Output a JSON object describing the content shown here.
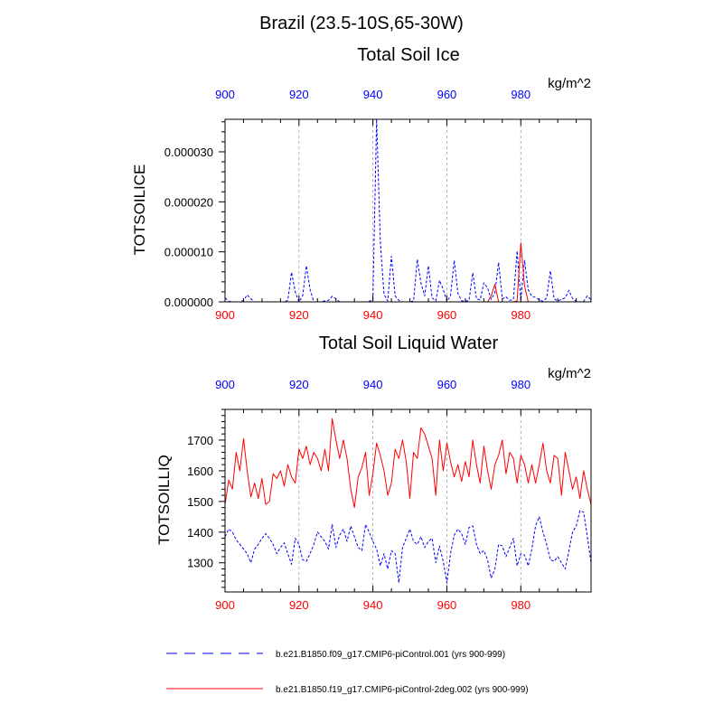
{
  "colors": {
    "blue": "#0000ff",
    "red": "#ff0000",
    "grid": "#a0a0a0",
    "frame": "#000000"
  },
  "figure": {
    "title": "Brazil (23.5-10S,65-30W)"
  },
  "legend": {
    "items": [
      {
        "label": "b.e21.B1850.f09_g17.CMIP6-piControl.001 (yrs 900-999)",
        "color": "#0000ff",
        "style": "dashed"
      },
      {
        "label": "b.e21.B1850.f19_g17.CMIP6-piControl-2deg.002 (yrs 900-999)",
        "color": "#ff0000",
        "style": "solid"
      }
    ]
  },
  "chart_data": [
    {
      "type": "line",
      "title": "Total Soil Ice",
      "units": "kg/m^2",
      "ylabel": "TOTSOILICE",
      "xlabel": "",
      "xlim": [
        900,
        999
      ],
      "ylim": [
        0,
        3.65e-05
      ],
      "x_ticks": [
        900,
        920,
        940,
        960,
        980
      ],
      "y_ticks": [
        0,
        1e-05,
        2e-05,
        3e-05
      ],
      "y_tick_labels": [
        "0.000000",
        "0.000010",
        "0.000020",
        "0.000030"
      ],
      "top_tick_color": "#0000ff",
      "bottom_tick_color": "#ff0000",
      "grid_x": true,
      "x": [
        900,
        901,
        902,
        903,
        904,
        905,
        906,
        907,
        908,
        909,
        910,
        911,
        912,
        913,
        914,
        915,
        916,
        917,
        918,
        919,
        920,
        921,
        922,
        923,
        924,
        925,
        926,
        927,
        928,
        929,
        930,
        931,
        932,
        933,
        934,
        935,
        936,
        937,
        938,
        939,
        940,
        941,
        942,
        943,
        944,
        945,
        946,
        947,
        948,
        949,
        950,
        951,
        952,
        953,
        954,
        955,
        956,
        957,
        958,
        959,
        960,
        961,
        962,
        963,
        964,
        965,
        966,
        967,
        968,
        969,
        970,
        971,
        972,
        973,
        974,
        975,
        976,
        977,
        978,
        979,
        980,
        981,
        982,
        983,
        984,
        985,
        986,
        987,
        988,
        989,
        990,
        991,
        992,
        993,
        994,
        995,
        996,
        997,
        998,
        999
      ],
      "series": [
        {
          "name": "b.e21.B1850.f09_g17.CMIP6-piControl.001 (yrs 900-999)",
          "color": "#0000ff",
          "style": "dashed",
          "values": [
            8e-07,
            1e-07,
            0,
            0,
            0,
            3e-07,
            1.4e-06,
            6e-07,
            0,
            0,
            0,
            0,
            0,
            0,
            0,
            0,
            0,
            3e-07,
            5.9e-06,
            2e-06,
            0,
            1.2e-06,
            7.2e-06,
            2.5e-06,
            0,
            0,
            0,
            2e-07,
            3e-07,
            1.1e-06,
            6e-07,
            0,
            0,
            0,
            0,
            0,
            0,
            0,
            0,
            1e-07,
            4e-07,
            3.65e-05,
            1.21e-05,
            1.5e-06,
            2e-07,
            9.1e-06,
            1.2e-06,
            3e-07,
            0,
            0,
            0,
            2e-07,
            8.5e-06,
            3.8e-06,
            1.2e-06,
            7.2e-06,
            8e-07,
            2e-07,
            4.3e-06,
            2.5e-06,
            1e-07,
            1.2e-06,
            8.3e-06,
            1.7e-06,
            2e-07,
            1e-07,
            3e-07,
            5.8e-06,
            6e-07,
            4e-07,
            3.8e-06,
            2.8e-06,
            5e-07,
            1.8e-06,
            7.9e-06,
            6e-07,
            1e-06,
            3e-07,
            5e-07,
            1.02e-05,
            3e-07,
            8.3e-06,
            2.4e-06,
            1.1e-06,
            9e-07,
            4e-07,
            1e-07,
            8e-07,
            6.2e-06,
            6e-07,
            2e-07,
            5e-07,
            8e-07,
            2.3e-06,
            7e-07,
            1e-07,
            0,
            1e-07,
            1.2e-06,
            4e-07
          ]
        },
        {
          "name": "b.e21.B1850.f19_g17.CMIP6-piControl-2deg.002 (yrs 900-999)",
          "color": "#ff0000",
          "style": "solid",
          "values": [
            0,
            0,
            0,
            0,
            0,
            0,
            0,
            0,
            0,
            0,
            0,
            0,
            0,
            0,
            0,
            0,
            0,
            0,
            0,
            0,
            0,
            0,
            0,
            0,
            0,
            0,
            0,
            0,
            0,
            0,
            0,
            0,
            0,
            0,
            0,
            0,
            0,
            0,
            0,
            0,
            0,
            0,
            0,
            0,
            0,
            0,
            0,
            0,
            0,
            0,
            0,
            0,
            0,
            0,
            0,
            0,
            0,
            0,
            0,
            0,
            0,
            0,
            0,
            0,
            0,
            0,
            0,
            0,
            0,
            0,
            0,
            0,
            1.2e-06,
            3.5e-06,
            0,
            0,
            0,
            0,
            0,
            2e-07,
            1.18e-05,
            3.2e-06,
            0,
            0,
            0,
            0,
            0,
            0,
            0,
            0,
            0,
            0,
            0,
            0,
            0,
            0,
            0,
            0,
            0,
            0
          ]
        }
      ]
    },
    {
      "type": "line",
      "title": "Total Soil Liquid Water",
      "units": "kg/m^2",
      "ylabel": "TOTSOILLIQ",
      "xlabel": "",
      "xlim": [
        900,
        999
      ],
      "ylim": [
        1205,
        1800
      ],
      "x_ticks": [
        900,
        920,
        940,
        960,
        980
      ],
      "y_ticks": [
        1300,
        1400,
        1500,
        1600,
        1700
      ],
      "y_tick_labels": [
        "1300",
        "1400",
        "1500",
        "1600",
        "1700"
      ],
      "top_tick_color": "#0000ff",
      "bottom_tick_color": "#ff0000",
      "grid_x": true,
      "x": [
        900,
        901,
        902,
        903,
        904,
        905,
        906,
        907,
        908,
        909,
        910,
        911,
        912,
        913,
        914,
        915,
        916,
        917,
        918,
        919,
        920,
        921,
        922,
        923,
        924,
        925,
        926,
        927,
        928,
        929,
        930,
        931,
        932,
        933,
        934,
        935,
        936,
        937,
        938,
        939,
        940,
        941,
        942,
        943,
        944,
        945,
        946,
        947,
        948,
        949,
        950,
        951,
        952,
        953,
        954,
        955,
        956,
        957,
        958,
        959,
        960,
        961,
        962,
        963,
        964,
        965,
        966,
        967,
        968,
        969,
        970,
        971,
        972,
        973,
        974,
        975,
        976,
        977,
        978,
        979,
        980,
        981,
        982,
        983,
        984,
        985,
        986,
        987,
        988,
        989,
        990,
        991,
        992,
        993,
        994,
        995,
        996,
        997,
        998,
        999
      ],
      "series": [
        {
          "name": "b.e21.B1850.f09_g17.CMIP6-piControl.001 (yrs 900-999)",
          "color": "#0000ff",
          "style": "dashed",
          "values": [
            1385,
            1410,
            1400,
            1375,
            1360,
            1345,
            1330,
            1300,
            1345,
            1360,
            1380,
            1395,
            1380,
            1360,
            1330,
            1350,
            1365,
            1330,
            1295,
            1380,
            1360,
            1310,
            1305,
            1330,
            1360,
            1400,
            1385,
            1370,
            1345,
            1425,
            1350,
            1390,
            1410,
            1370,
            1420,
            1385,
            1350,
            1340,
            1425,
            1400,
            1370,
            1345,
            1290,
            1330,
            1280,
            1340,
            1330,
            1235,
            1350,
            1380,
            1410,
            1370,
            1360,
            1385,
            1350,
            1370,
            1380,
            1300,
            1355,
            1305,
            1235,
            1330,
            1390,
            1410,
            1395,
            1360,
            1415,
            1420,
            1360,
            1330,
            1340,
            1310,
            1250,
            1280,
            1360,
            1355,
            1320,
            1350,
            1380,
            1290,
            1330,
            1325,
            1290,
            1345,
            1420,
            1450,
            1400,
            1360,
            1310,
            1305,
            1320,
            1300,
            1280,
            1340,
            1400,
            1420,
            1470,
            1465,
            1385,
            1300
          ]
        },
        {
          "name": "b.e21.B1850.f19_g17.CMIP6-piControl-2deg.002 (yrs 900-999)",
          "color": "#ff0000",
          "style": "solid",
          "values": [
            1490,
            1570,
            1540,
            1660,
            1600,
            1705,
            1600,
            1515,
            1560,
            1510,
            1575,
            1490,
            1500,
            1590,
            1575,
            1600,
            1550,
            1620,
            1580,
            1560,
            1670,
            1640,
            1680,
            1620,
            1660,
            1640,
            1600,
            1670,
            1600,
            1770,
            1700,
            1640,
            1700,
            1640,
            1540,
            1480,
            1580,
            1610,
            1660,
            1520,
            1590,
            1690,
            1650,
            1600,
            1520,
            1560,
            1670,
            1640,
            1700,
            1630,
            1510,
            1660,
            1640,
            1740,
            1720,
            1680,
            1640,
            1520,
            1700,
            1600,
            1690,
            1630,
            1580,
            1620,
            1565,
            1630,
            1580,
            1700,
            1620,
            1560,
            1680,
            1600,
            1540,
            1620,
            1650,
            1700,
            1590,
            1660,
            1640,
            1560,
            1650,
            1620,
            1560,
            1620,
            1560,
            1620,
            1690,
            1600,
            1560,
            1650,
            1640,
            1520,
            1660,
            1600,
            1540,
            1580,
            1510,
            1600,
            1540,
            1490
          ]
        }
      ]
    }
  ]
}
